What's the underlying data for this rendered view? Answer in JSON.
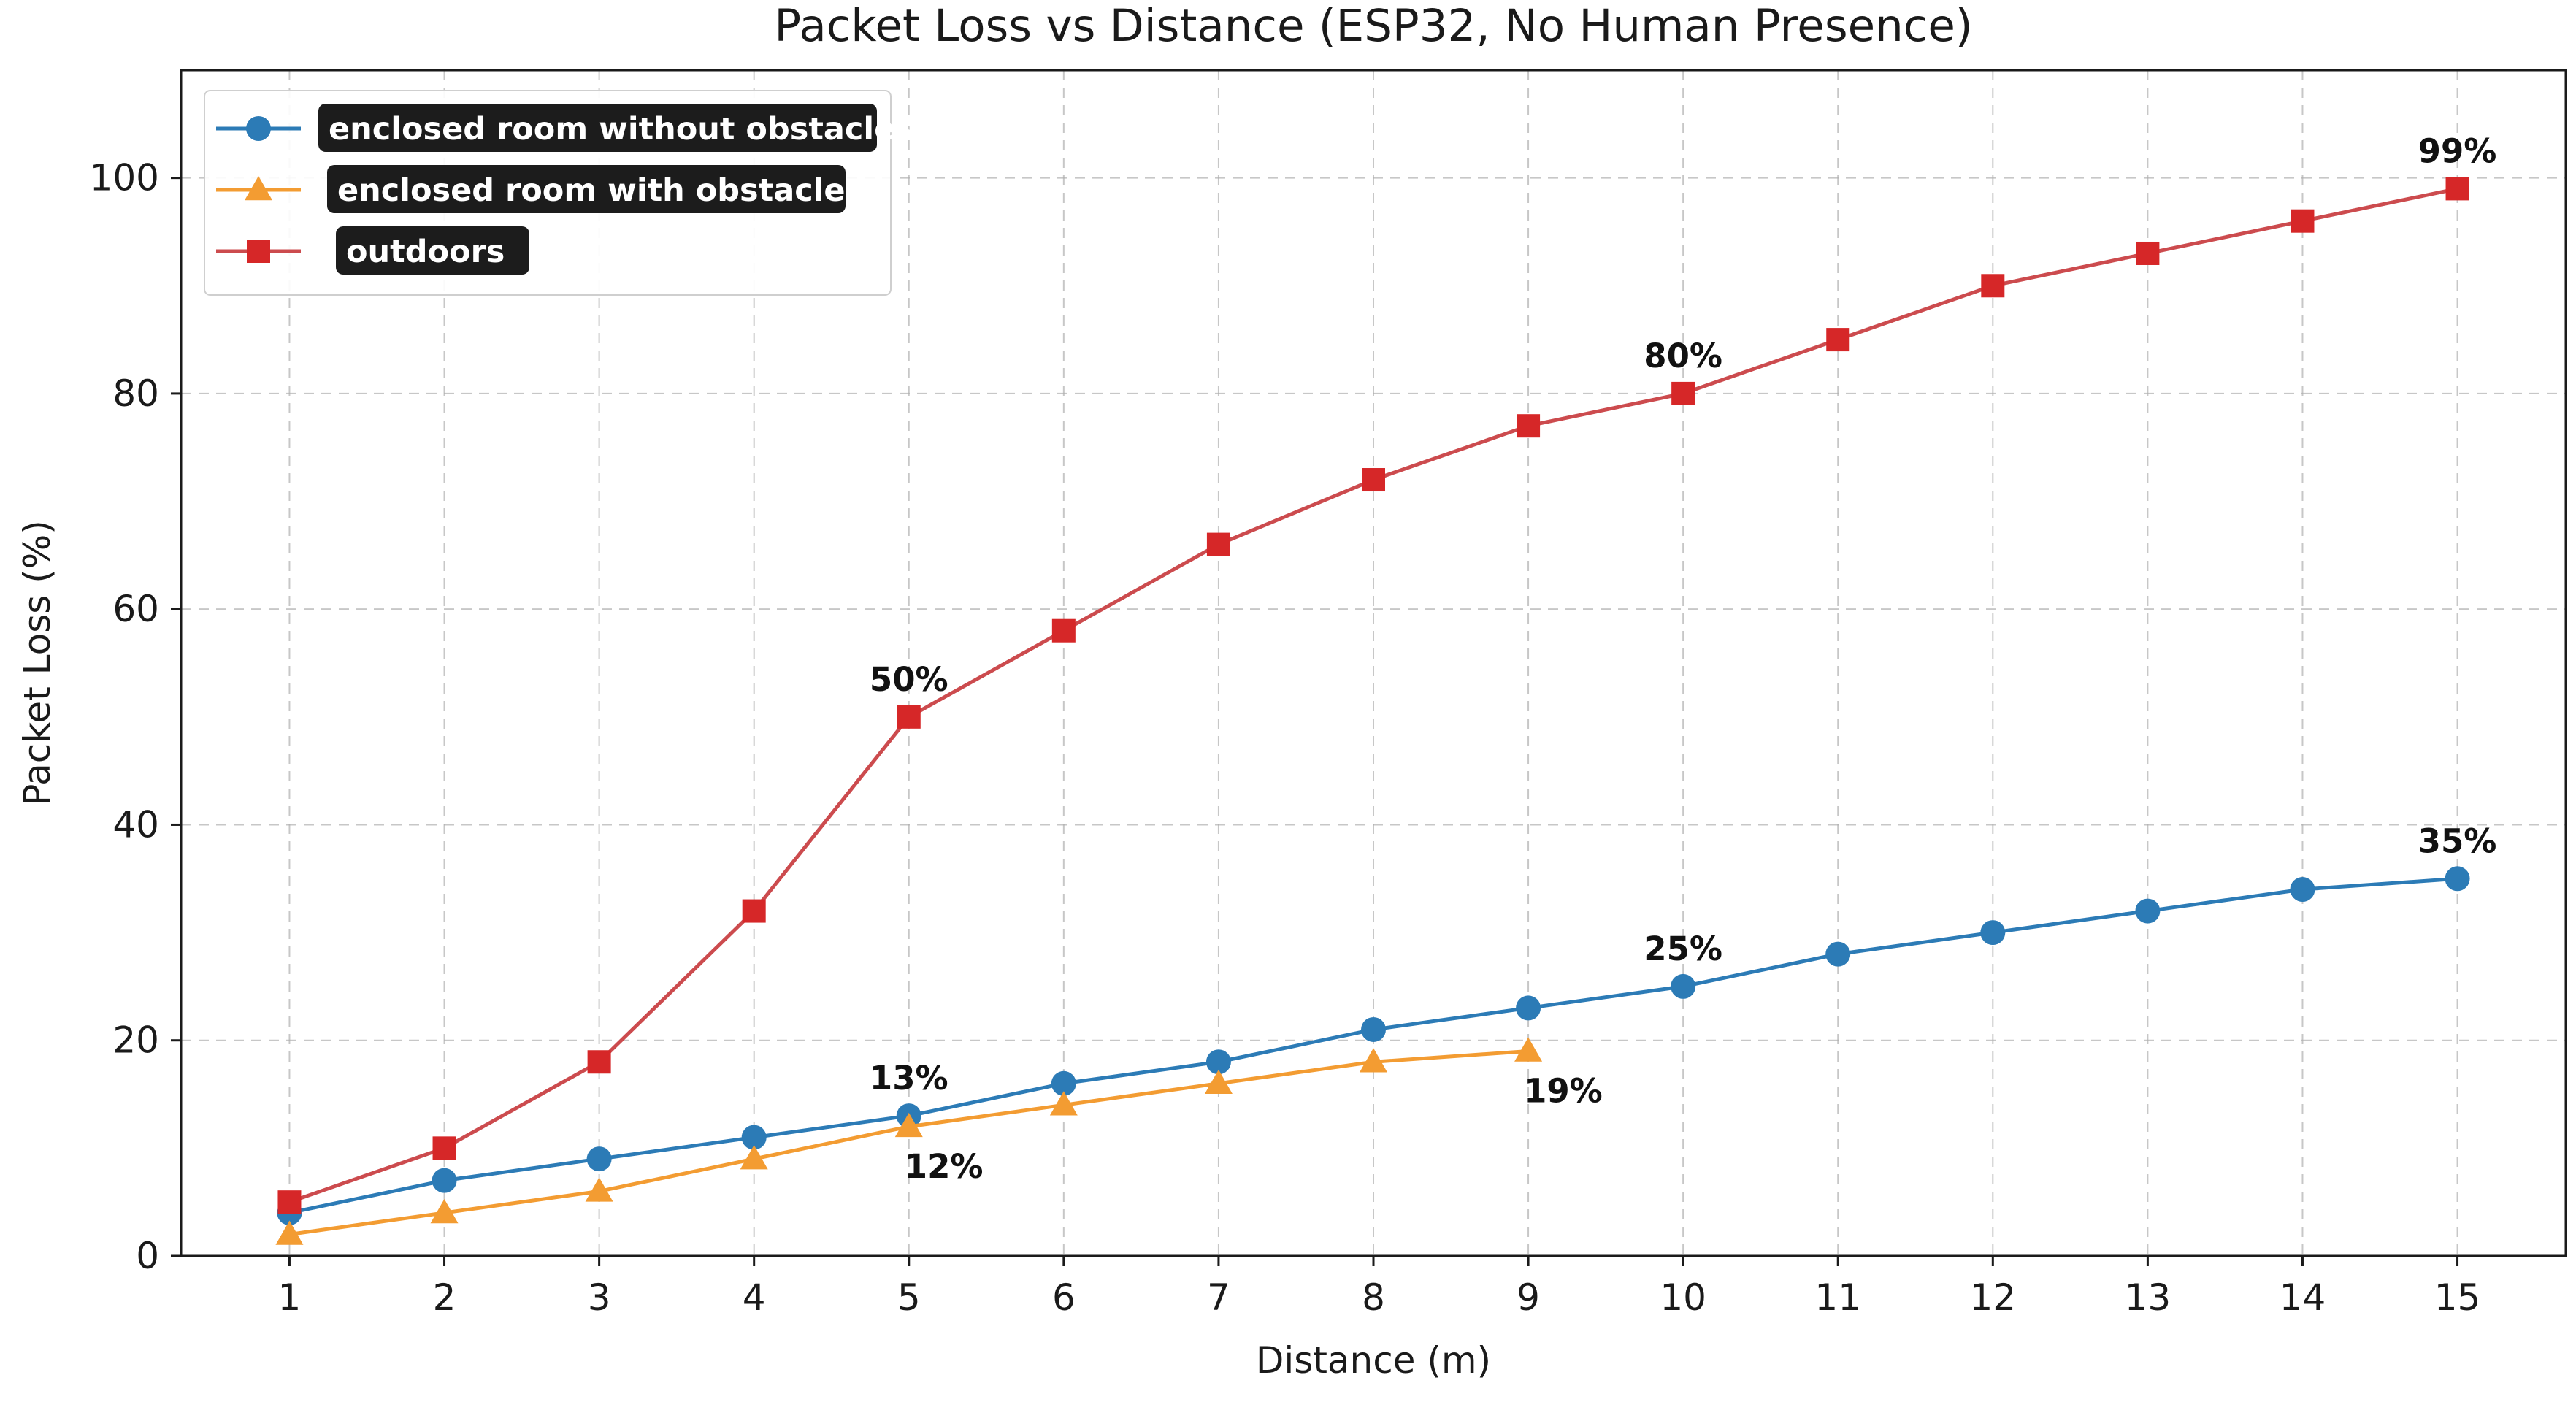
{
  "chart_data": {
    "type": "line",
    "title": "Packet Loss vs Distance (ESP32, No Human Presence)",
    "xlabel": "Distance (m)",
    "ylabel": "Packet Loss (%)",
    "xlim": [
      0.3,
      15.7
    ],
    "ylim": [
      0,
      110
    ],
    "x_ticks": [
      "1",
      "2",
      "3",
      "4",
      "5",
      "6",
      "7",
      "8",
      "9",
      "10",
      "11",
      "12",
      "13",
      "14",
      "15"
    ],
    "y_ticks": [
      "0",
      "20",
      "40",
      "60",
      "80",
      "100"
    ],
    "grid": true,
    "legend_position": "top-left",
    "series": [
      {
        "name": "enclosed room without obstacles",
        "color": "#2c7bb6",
        "marker": "circle",
        "x": [
          1,
          2,
          3,
          4,
          5,
          6,
          7,
          8,
          9,
          10,
          11,
          12,
          13,
          14,
          15
        ],
        "values": [
          4,
          7,
          9,
          11,
          13,
          16,
          18,
          21,
          23,
          25,
          28,
          30,
          32,
          34,
          35
        ]
      },
      {
        "name": "enclosed room with obstacles",
        "color": "#f39c32",
        "marker": "triangle",
        "x": [
          1,
          2,
          3,
          4,
          5,
          6,
          7,
          8,
          9
        ],
        "values": [
          2,
          4,
          6,
          9,
          12,
          14,
          16,
          18,
          19
        ]
      },
      {
        "name": "outdoors",
        "color": "#d62728",
        "line_color": "#cc4b4e",
        "marker": "square",
        "x": [
          1,
          2,
          3,
          4,
          5,
          6,
          7,
          8,
          9,
          10,
          11,
          12,
          13,
          14,
          15
        ],
        "values": [
          5,
          10,
          18,
          32,
          50,
          58,
          66,
          72,
          77,
          80,
          85,
          90,
          93,
          96,
          99
        ]
      }
    ],
    "annotations": [
      {
        "text": "99%",
        "series": 2,
        "x": 15,
        "y": 99,
        "placement": "above"
      },
      {
        "text": "80%",
        "series": 2,
        "x": 10,
        "y": 80,
        "placement": "above"
      },
      {
        "text": "50%",
        "series": 2,
        "x": 5,
        "y": 50,
        "placement": "above"
      },
      {
        "text": "35%",
        "series": 0,
        "x": 15,
        "y": 35,
        "placement": "above"
      },
      {
        "text": "25%",
        "series": 0,
        "x": 10,
        "y": 25,
        "placement": "above"
      },
      {
        "text": "13%",
        "series": 0,
        "x": 5,
        "y": 13,
        "placement": "above"
      },
      {
        "text": "12%",
        "series": 1,
        "x": 5,
        "y": 12,
        "placement": "below-right"
      },
      {
        "text": "19%",
        "series": 1,
        "x": 9,
        "y": 19,
        "placement": "below-right"
      }
    ]
  }
}
